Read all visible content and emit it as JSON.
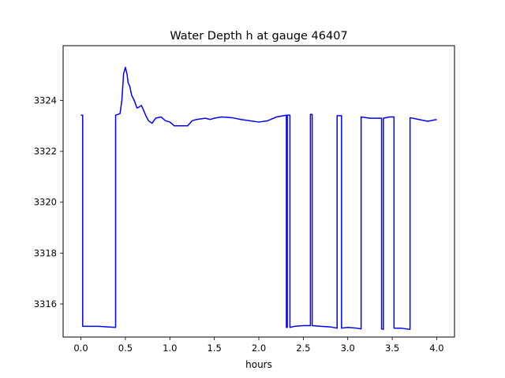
{
  "chart_data": {
    "type": "line",
    "title": "Water Depth h at gauge 46407",
    "xlabel": "hours",
    "ylabel": "",
    "xlim": [
      -0.2,
      4.2
    ],
    "ylim": [
      3314.7,
      3326.15
    ],
    "xticks": [
      0.0,
      0.5,
      1.0,
      1.5,
      2.0,
      2.5,
      3.0,
      3.5,
      4.0
    ],
    "xtick_labels": [
      "0.0",
      "0.5",
      "1.0",
      "1.5",
      "2.0",
      "2.5",
      "3.0",
      "3.5",
      "4.0"
    ],
    "yticks": [
      3316,
      3318,
      3320,
      3322,
      3324
    ],
    "ytick_labels": [
      "3316",
      "3318",
      "3320",
      "3322",
      "3324"
    ],
    "grid": false,
    "series": [
      {
        "color": "#0000ff",
        "points": [
          [
            0.0,
            3323.42
          ],
          [
            0.02,
            3323.42
          ],
          [
            0.02,
            3315.12
          ],
          [
            0.1,
            3315.12
          ],
          [
            0.2,
            3315.12
          ],
          [
            0.3,
            3315.1
          ],
          [
            0.39,
            3315.08
          ],
          [
            0.39,
            3323.42
          ],
          [
            0.44,
            3323.48
          ],
          [
            0.46,
            3324.0
          ],
          [
            0.48,
            3325.05
          ],
          [
            0.5,
            3325.3
          ],
          [
            0.52,
            3325.0
          ],
          [
            0.53,
            3324.7
          ],
          [
            0.55,
            3324.55
          ],
          [
            0.57,
            3324.2
          ],
          [
            0.6,
            3324.0
          ],
          [
            0.63,
            3323.7
          ],
          [
            0.66,
            3323.75
          ],
          [
            0.68,
            3323.8
          ],
          [
            0.7,
            3323.65
          ],
          [
            0.73,
            3323.4
          ],
          [
            0.76,
            3323.2
          ],
          [
            0.8,
            3323.1
          ],
          [
            0.84,
            3323.3
          ],
          [
            0.9,
            3323.35
          ],
          [
            0.95,
            3323.2
          ],
          [
            1.0,
            3323.15
          ],
          [
            1.05,
            3323.0
          ],
          [
            1.1,
            3323.0
          ],
          [
            1.2,
            3323.0
          ],
          [
            1.25,
            3323.2
          ],
          [
            1.3,
            3323.25
          ],
          [
            1.4,
            3323.3
          ],
          [
            1.45,
            3323.25
          ],
          [
            1.5,
            3323.3
          ],
          [
            1.58,
            3323.35
          ],
          [
            1.7,
            3323.32
          ],
          [
            1.8,
            3323.25
          ],
          [
            1.9,
            3323.2
          ],
          [
            2.0,
            3323.15
          ],
          [
            2.1,
            3323.2
          ],
          [
            2.2,
            3323.35
          ],
          [
            2.31,
            3323.42
          ],
          [
            2.31,
            3315.08
          ],
          [
            2.32,
            3315.08
          ],
          [
            2.32,
            3323.42
          ],
          [
            2.35,
            3323.42
          ],
          [
            2.35,
            3315.08
          ],
          [
            2.4,
            3315.12
          ],
          [
            2.5,
            3315.15
          ],
          [
            2.58,
            3315.15
          ],
          [
            2.58,
            3323.45
          ],
          [
            2.6,
            3323.45
          ],
          [
            2.6,
            3315.15
          ],
          [
            2.7,
            3315.12
          ],
          [
            2.8,
            3315.1
          ],
          [
            2.88,
            3315.05
          ],
          [
            2.88,
            3323.4
          ],
          [
            2.93,
            3323.4
          ],
          [
            2.93,
            3315.05
          ],
          [
            3.0,
            3315.08
          ],
          [
            3.1,
            3315.05
          ],
          [
            3.15,
            3315.02
          ],
          [
            3.15,
            3323.35
          ],
          [
            3.25,
            3323.3
          ],
          [
            3.38,
            3323.3
          ],
          [
            3.38,
            3315.02
          ],
          [
            3.4,
            3315.0
          ],
          [
            3.4,
            3323.3
          ],
          [
            3.47,
            3323.35
          ],
          [
            3.52,
            3323.35
          ],
          [
            3.52,
            3315.05
          ],
          [
            3.6,
            3315.05
          ],
          [
            3.7,
            3315.0
          ],
          [
            3.7,
            3323.32
          ],
          [
            3.8,
            3323.25
          ],
          [
            3.9,
            3323.18
          ],
          [
            4.0,
            3323.25
          ]
        ]
      }
    ]
  }
}
